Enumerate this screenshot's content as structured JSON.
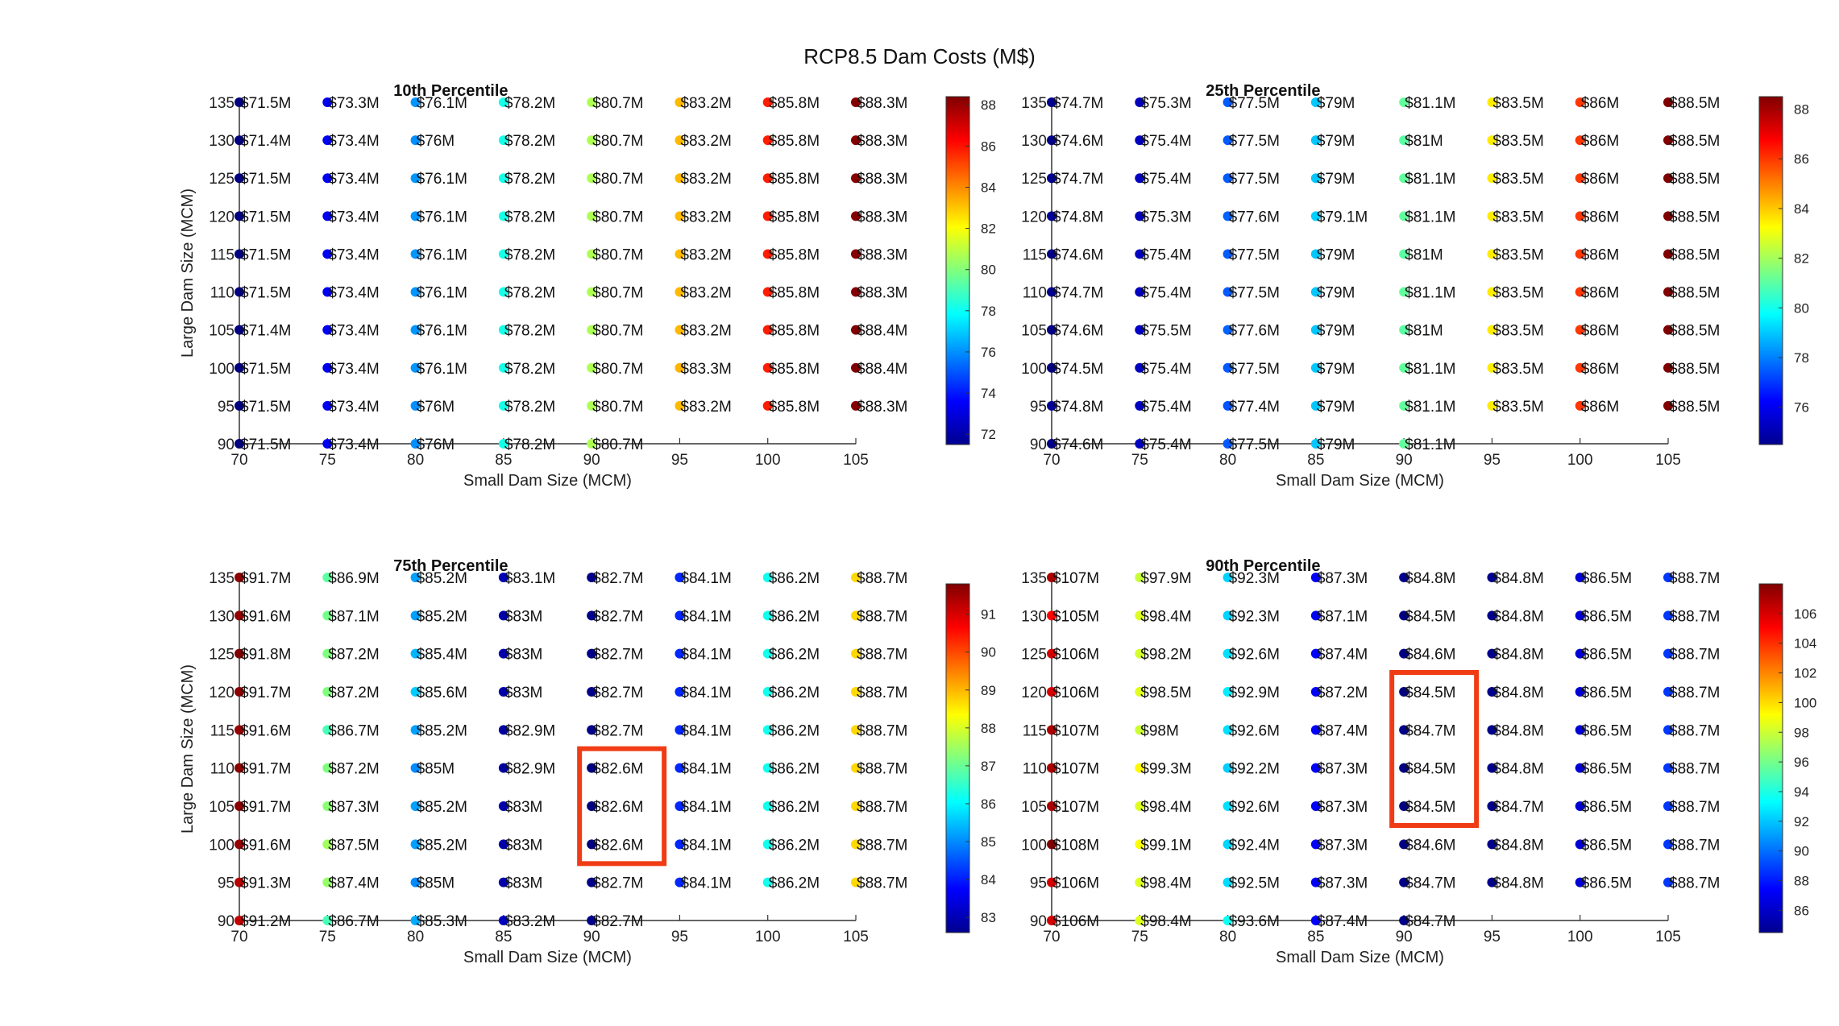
{
  "figure": {
    "title": "RCP8.5 Dam Costs (M$)"
  },
  "chart_data": [
    {
      "type": "scatter",
      "title": "10th Percentile",
      "xlabel": "Small Dam Size (MCM)",
      "ylabel": "Large Dam Size (MCM)",
      "x_ticks": [
        70,
        75,
        80,
        85,
        90,
        95,
        100,
        105
      ],
      "y_ticks": [
        90,
        95,
        100,
        105,
        110,
        115,
        120,
        125,
        130,
        135
      ],
      "xlim": [
        70,
        105
      ],
      "ylim": [
        90,
        135
      ],
      "colorbar": {
        "min": 71.5,
        "max": 88.4,
        "ticks": [
          72,
          74,
          76,
          78,
          80,
          82,
          84,
          86,
          88
        ]
      },
      "colormap": "jet",
      "annotations": [],
      "rows": [
        {
          "y": 135,
          "labels": [
            "$71.5M",
            "$73.3M",
            "$76.1M",
            "$78.2M",
            "$80.7M",
            "$83.2M",
            "$85.8M",
            "$88.3M"
          ]
        },
        {
          "y": 130,
          "labels": [
            "$71.4M",
            "$73.4M",
            "$76M",
            "$78.2M",
            "$80.7M",
            "$83.2M",
            "$85.8M",
            "$88.3M"
          ]
        },
        {
          "y": 125,
          "labels": [
            "$71.5M",
            "$73.4M",
            "$76.1M",
            "$78.2M",
            "$80.7M",
            "$83.2M",
            "$85.8M",
            "$88.3M"
          ]
        },
        {
          "y": 120,
          "labels": [
            "$71.5M",
            "$73.4M",
            "$76.1M",
            "$78.2M",
            "$80.7M",
            "$83.2M",
            "$85.8M",
            "$88.3M"
          ]
        },
        {
          "y": 115,
          "labels": [
            "$71.5M",
            "$73.4M",
            "$76.1M",
            "$78.2M",
            "$80.7M",
            "$83.2M",
            "$85.8M",
            "$88.3M"
          ]
        },
        {
          "y": 110,
          "labels": [
            "$71.5M",
            "$73.4M",
            "$76.1M",
            "$78.2M",
            "$80.7M",
            "$83.2M",
            "$85.8M",
            "$88.3M"
          ]
        },
        {
          "y": 105,
          "labels": [
            "$71.4M",
            "$73.4M",
            "$76.1M",
            "$78.2M",
            "$80.7M",
            "$83.2M",
            "$85.8M",
            "$88.4M"
          ]
        },
        {
          "y": 100,
          "labels": [
            "$71.5M",
            "$73.4M",
            "$76.1M",
            "$78.2M",
            "$80.7M",
            "$83.3M",
            "$85.8M",
            "$88.4M"
          ]
        },
        {
          "y": 95,
          "labels": [
            "$71.5M",
            "$73.4M",
            "$76M",
            "$78.2M",
            "$80.7M",
            "$83.2M",
            "$85.8M",
            "$88.3M"
          ]
        },
        {
          "y": 90,
          "labels": [
            "$71.5M",
            "$73.4M",
            "$76M",
            "$78.2M",
            "$80.7M"
          ]
        }
      ]
    },
    {
      "type": "scatter",
      "title": "25th Percentile",
      "xlabel": "Small Dam Size (MCM)",
      "ylabel": "",
      "x_ticks": [
        70,
        75,
        80,
        85,
        90,
        95,
        100,
        105
      ],
      "y_ticks": [
        90,
        95,
        100,
        105,
        110,
        115,
        120,
        125,
        130,
        135
      ],
      "xlim": [
        70,
        105
      ],
      "ylim": [
        90,
        135
      ],
      "colorbar": {
        "min": 74.5,
        "max": 88.5,
        "ticks": [
          76,
          78,
          80,
          82,
          84,
          86,
          88
        ]
      },
      "colormap": "jet",
      "annotations": [],
      "rows": [
        {
          "y": 135,
          "labels": [
            "$74.7M",
            "$75.3M",
            "$77.5M",
            "$79M",
            "$81.1M",
            "$83.5M",
            "$86M",
            "$88.5M"
          ]
        },
        {
          "y": 130,
          "labels": [
            "$74.6M",
            "$75.4M",
            "$77.5M",
            "$79M",
            "$81M",
            "$83.5M",
            "$86M",
            "$88.5M"
          ]
        },
        {
          "y": 125,
          "labels": [
            "$74.7M",
            "$75.4M",
            "$77.5M",
            "$79M",
            "$81.1M",
            "$83.5M",
            "$86M",
            "$88.5M"
          ]
        },
        {
          "y": 120,
          "labels": [
            "$74.8M",
            "$75.3M",
            "$77.6M",
            "$79.1M",
            "$81.1M",
            "$83.5M",
            "$86M",
            "$88.5M"
          ]
        },
        {
          "y": 115,
          "labels": [
            "$74.6M",
            "$75.4M",
            "$77.5M",
            "$79M",
            "$81M",
            "$83.5M",
            "$86M",
            "$88.5M"
          ]
        },
        {
          "y": 110,
          "labels": [
            "$74.7M",
            "$75.4M",
            "$77.5M",
            "$79M",
            "$81.1M",
            "$83.5M",
            "$86M",
            "$88.5M"
          ]
        },
        {
          "y": 105,
          "labels": [
            "$74.6M",
            "$75.5M",
            "$77.6M",
            "$79M",
            "$81M",
            "$83.5M",
            "$86M",
            "$88.5M"
          ]
        },
        {
          "y": 100,
          "labels": [
            "$74.5M",
            "$75.4M",
            "$77.5M",
            "$79M",
            "$81.1M",
            "$83.5M",
            "$86M",
            "$88.5M"
          ]
        },
        {
          "y": 95,
          "labels": [
            "$74.8M",
            "$75.4M",
            "$77.4M",
            "$79M",
            "$81.1M",
            "$83.5M",
            "$86M",
            "$88.5M"
          ]
        },
        {
          "y": 90,
          "labels": [
            "$74.6M",
            "$75.4M",
            "$77.5M",
            "$79M",
            "$81.1M"
          ]
        }
      ]
    },
    {
      "type": "scatter",
      "title": "75th Percentile",
      "xlabel": "Small Dam Size (MCM)",
      "ylabel": "Large Dam Size (MCM)",
      "x_ticks": [
        70,
        75,
        80,
        85,
        90,
        95,
        100,
        105
      ],
      "y_ticks": [
        90,
        95,
        100,
        105,
        110,
        115,
        120,
        125,
        130,
        135
      ],
      "xlim": [
        70,
        105
      ],
      "ylim": [
        90,
        135
      ],
      "colorbar": {
        "min": 82.6,
        "max": 91.8,
        "ticks": [
          83,
          84,
          85,
          86,
          87,
          88,
          89,
          90,
          91
        ]
      },
      "colormap": "jet",
      "annotations": [
        {
          "type": "highlight-box",
          "color": "#f03c15",
          "x": 90,
          "y_range": [
            100,
            110
          ]
        }
      ],
      "rows": [
        {
          "y": 135,
          "labels": [
            "$91.7M",
            "$86.9M",
            "$85.2M",
            "$83.1M",
            "$82.7M",
            "$84.1M",
            "$86.2M",
            "$88.7M"
          ]
        },
        {
          "y": 130,
          "labels": [
            "$91.6M",
            "$87.1M",
            "$85.2M",
            "$83M",
            "$82.7M",
            "$84.1M",
            "$86.2M",
            "$88.7M"
          ]
        },
        {
          "y": 125,
          "labels": [
            "$91.8M",
            "$87.2M",
            "$85.4M",
            "$83M",
            "$82.7M",
            "$84.1M",
            "$86.2M",
            "$88.7M"
          ]
        },
        {
          "y": 120,
          "labels": [
            "$91.7M",
            "$87.2M",
            "$85.6M",
            "$83M",
            "$82.7M",
            "$84.1M",
            "$86.2M",
            "$88.7M"
          ]
        },
        {
          "y": 115,
          "labels": [
            "$91.6M",
            "$86.7M",
            "$85.2M",
            "$82.9M",
            "$82.7M",
            "$84.1M",
            "$86.2M",
            "$88.7M"
          ]
        },
        {
          "y": 110,
          "labels": [
            "$91.7M",
            "$87.2M",
            "$85M",
            "$82.9M",
            "$82.6M",
            "$84.1M",
            "$86.2M",
            "$88.7M"
          ]
        },
        {
          "y": 105,
          "labels": [
            "$91.7M",
            "$87.3M",
            "$85.2M",
            "$83M",
            "$82.6M",
            "$84.1M",
            "$86.2M",
            "$88.7M"
          ]
        },
        {
          "y": 100,
          "labels": [
            "$91.6M",
            "$87.5M",
            "$85.2M",
            "$83M",
            "$82.6M",
            "$84.1M",
            "$86.2M",
            "$88.7M"
          ]
        },
        {
          "y": 95,
          "labels": [
            "$91.3M",
            "$87.4M",
            "$85M",
            "$83M",
            "$82.7M",
            "$84.1M",
            "$86.2M",
            "$88.7M"
          ]
        },
        {
          "y": 90,
          "labels": [
            "$91.2M",
            "$86.7M",
            "$85.3M",
            "$83.2M",
            "$82.7M"
          ]
        }
      ]
    },
    {
      "type": "scatter",
      "title": "90th Percentile",
      "xlabel": "Small Dam Size (MCM)",
      "ylabel": "",
      "x_ticks": [
        70,
        75,
        80,
        85,
        90,
        95,
        100,
        105
      ],
      "y_ticks": [
        90,
        95,
        100,
        105,
        110,
        115,
        120,
        125,
        130,
        135
      ],
      "xlim": [
        70,
        105
      ],
      "ylim": [
        90,
        135
      ],
      "colorbar": {
        "min": 84.5,
        "max": 108,
        "ticks": [
          86,
          88,
          90,
          92,
          94,
          96,
          98,
          100,
          102,
          104,
          106
        ]
      },
      "colormap": "jet",
      "annotations": [
        {
          "type": "highlight-box",
          "color": "#f03c15",
          "x": 90,
          "y_range": [
            105,
            120
          ]
        }
      ],
      "rows": [
        {
          "y": 135,
          "labels": [
            "$107M",
            "$97.9M",
            "$92.3M",
            "$87.3M",
            "$84.8M",
            "$84.8M",
            "$86.5M",
            "$88.7M"
          ]
        },
        {
          "y": 130,
          "labels": [
            "$105M",
            "$98.4M",
            "$92.3M",
            "$87.1M",
            "$84.5M",
            "$84.8M",
            "$86.5M",
            "$88.7M"
          ]
        },
        {
          "y": 125,
          "labels": [
            "$106M",
            "$98.2M",
            "$92.6M",
            "$87.4M",
            "$84.6M",
            "$84.8M",
            "$86.5M",
            "$88.7M"
          ]
        },
        {
          "y": 120,
          "labels": [
            "$106M",
            "$98.5M",
            "$92.9M",
            "$87.2M",
            "$84.5M",
            "$84.8M",
            "$86.5M",
            "$88.7M"
          ]
        },
        {
          "y": 115,
          "labels": [
            "$107M",
            "$98M",
            "$92.6M",
            "$87.4M",
            "$84.7M",
            "$84.8M",
            "$86.5M",
            "$88.7M"
          ]
        },
        {
          "y": 110,
          "labels": [
            "$107M",
            "$99.3M",
            "$92.2M",
            "$87.3M",
            "$84.5M",
            "$84.8M",
            "$86.5M",
            "$88.7M"
          ]
        },
        {
          "y": 105,
          "labels": [
            "$107M",
            "$98.4M",
            "$92.6M",
            "$87.3M",
            "$84.5M",
            "$84.7M",
            "$86.5M",
            "$88.7M"
          ]
        },
        {
          "y": 100,
          "labels": [
            "$108M",
            "$99.1M",
            "$92.4M",
            "$87.3M",
            "$84.6M",
            "$84.8M",
            "$86.5M",
            "$88.7M"
          ]
        },
        {
          "y": 95,
          "labels": [
            "$106M",
            "$98.4M",
            "$92.5M",
            "$87.3M",
            "$84.7M",
            "$84.8M",
            "$86.5M",
            "$88.7M"
          ]
        },
        {
          "y": 90,
          "labels": [
            "$106M",
            "$98.4M",
            "$93.6M",
            "$87.4M",
            "$84.7M"
          ]
        }
      ]
    }
  ]
}
